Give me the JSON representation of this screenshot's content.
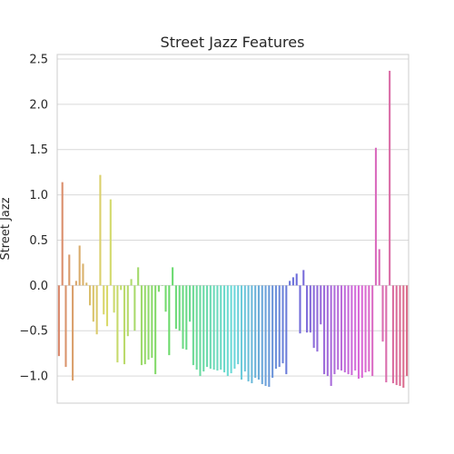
{
  "chart_data": {
    "type": "bar",
    "title": "Street Jazz Features",
    "xlabel": "",
    "ylabel": "Street Jazz",
    "ylim": [
      -1.3,
      2.55
    ],
    "yticks": [
      2.5,
      2.0,
      1.5,
      1.0,
      0.5,
      0.0,
      -0.5,
      -1.0
    ],
    "ytick_labels": [
      "2.5",
      "2.0",
      "1.5",
      "1.0",
      "0.5",
      "0.0",
      "−0.5",
      "−1.0"
    ],
    "grid": "horizontal",
    "palette": "husl",
    "values": [
      -0.78,
      1.14,
      -0.9,
      0.34,
      -1.05,
      0.05,
      0.44,
      0.24,
      0.03,
      -0.22,
      -0.4,
      -0.54,
      1.22,
      -0.32,
      -0.45,
      0.95,
      -0.3,
      -0.85,
      -0.05,
      -0.87,
      -0.56,
      0.07,
      -0.5,
      0.2,
      -0.88,
      -0.87,
      -0.82,
      -0.8,
      -0.98,
      -0.07,
      0.0,
      -0.29,
      -0.77,
      0.2,
      -0.48,
      -0.5,
      -0.7,
      -0.71,
      -0.4,
      -0.88,
      -0.93,
      -1.0,
      -0.95,
      -0.9,
      -0.92,
      -0.93,
      -0.94,
      -0.93,
      -0.96,
      -1.0,
      -0.97,
      -0.92,
      -0.87,
      -1.04,
      -0.95,
      -1.06,
      -1.08,
      -1.02,
      -1.04,
      -1.09,
      -1.11,
      -1.12,
      -1.02,
      -0.92,
      -0.9,
      -0.86,
      -0.98,
      0.05,
      0.09,
      0.13,
      -0.53,
      0.17,
      -0.52,
      -0.52,
      -0.69,
      -0.73,
      -0.43,
      -0.98,
      -1.0,
      -1.11,
      -0.98,
      -0.93,
      -0.94,
      -0.96,
      -0.98,
      -0.99,
      -0.94,
      -1.03,
      -1.02,
      -0.96,
      -0.95,
      -1.0,
      1.52,
      0.4,
      -0.62,
      -1.07,
      2.37,
      -1.08,
      -1.1,
      -1.11,
      -1.13,
      -1.0
    ]
  }
}
